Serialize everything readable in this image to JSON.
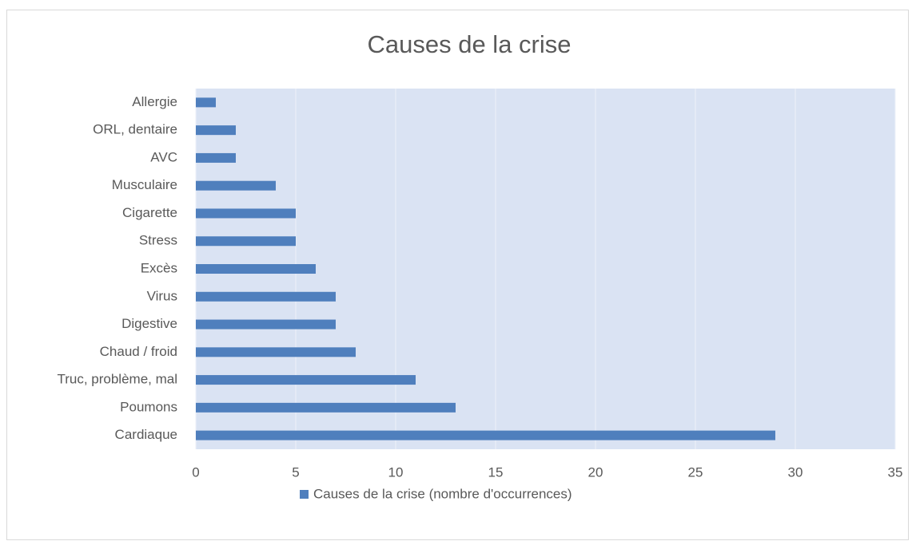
{
  "chart_data": {
    "type": "barh",
    "title": "Causes de la crise",
    "categories": [
      "Cardiaque",
      "Poumons",
      "Truc, problème, mal",
      "Chaud / froid",
      "Digestive",
      "Virus",
      "Excès",
      "Stress",
      "Cigarette",
      "Musculaire",
      "AVC",
      "ORL, dentaire",
      "Allergie"
    ],
    "series": [
      {
        "name": "Causes de la crise (nombre d'occurrences)",
        "color": "#4f7fbd",
        "values": [
          29,
          13,
          11,
          8,
          7,
          7,
          6,
          5,
          5,
          4,
          2,
          2,
          1
        ]
      }
    ],
    "xlim": [
      0,
      35
    ],
    "xticks": [
      0,
      5,
      10,
      15,
      20,
      25,
      30,
      35
    ],
    "grid": true,
    "legend": "bottom"
  }
}
